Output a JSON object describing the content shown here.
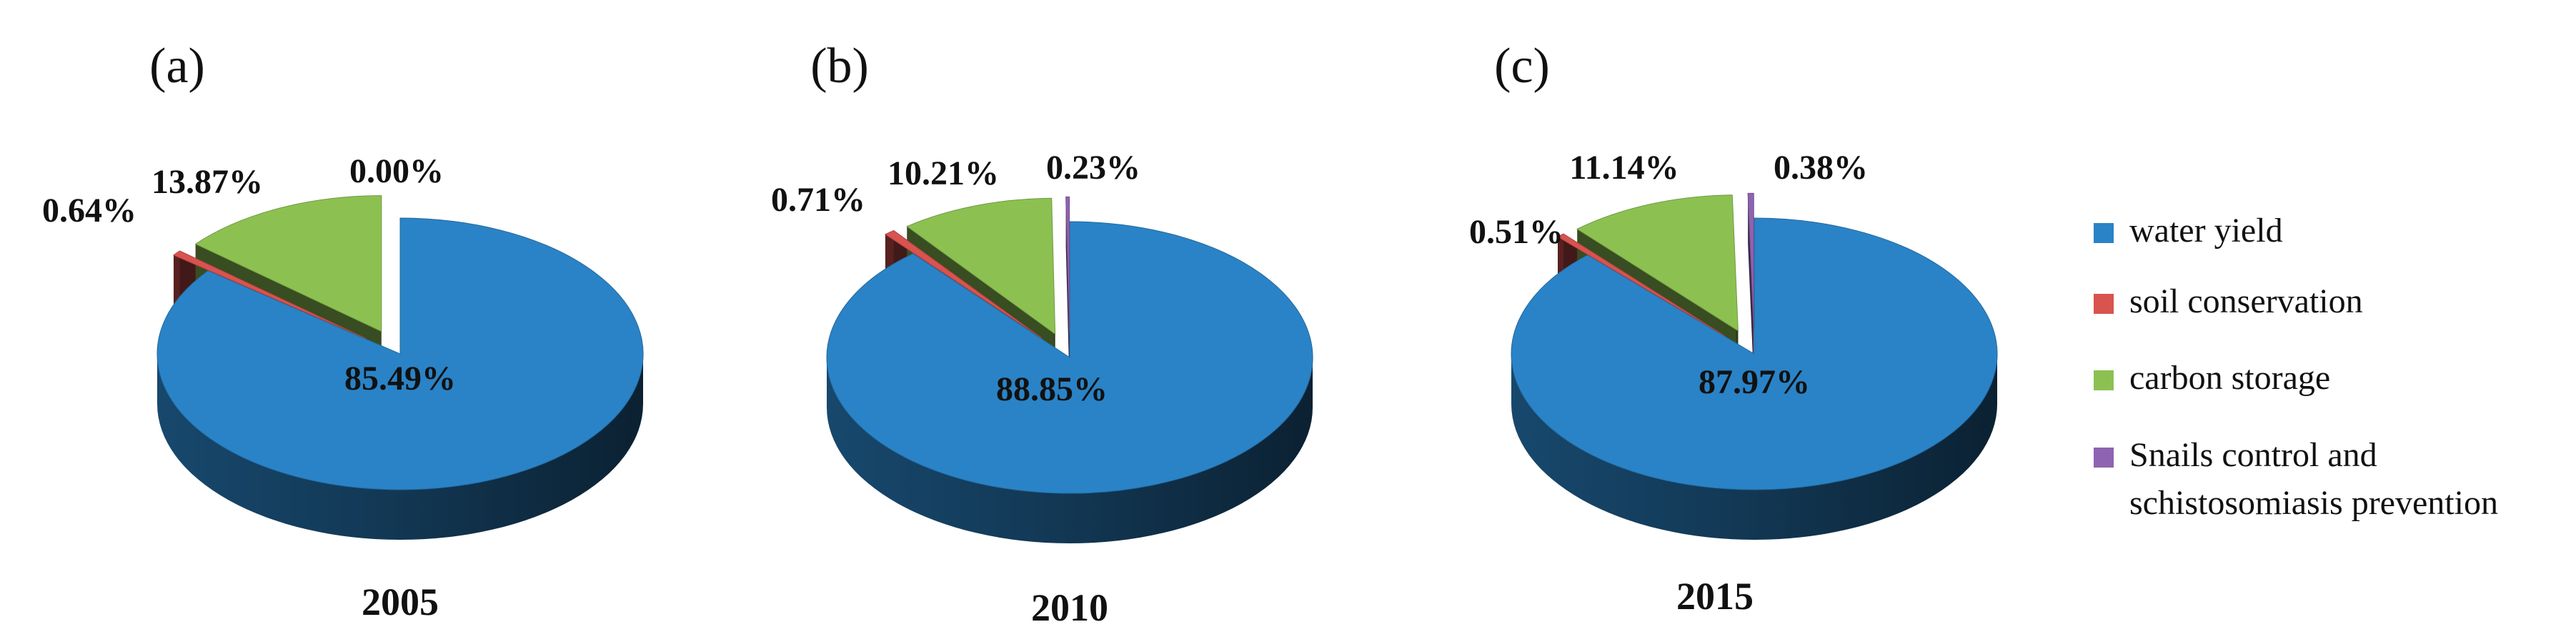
{
  "chart_data": [
    {
      "type": "pie",
      "panel": "(a)",
      "year": "2005",
      "slices": [
        {
          "category": "water yield",
          "value": 85.49,
          "label": "85.49%",
          "color": "#2a83c6"
        },
        {
          "category": "soil conservation",
          "value": 0.64,
          "label": "0.64%",
          "color": "#d9534f"
        },
        {
          "category": "carbon storage",
          "value": 13.87,
          "label": "13.87%",
          "color": "#8cc152"
        },
        {
          "category": "Snails control and schistosomiasis prevention",
          "value": 0.0,
          "label": "0.00%",
          "color": "#8e63b0"
        }
      ]
    },
    {
      "type": "pie",
      "panel": "(b)",
      "year": "2010",
      "slices": [
        {
          "category": "water yield",
          "value": 88.85,
          "label": "88.85%",
          "color": "#2a83c6"
        },
        {
          "category": "soil conservation",
          "value": 0.71,
          "label": "0.71%",
          "color": "#d9534f"
        },
        {
          "category": "carbon storage",
          "value": 10.21,
          "label": "10.21%",
          "color": "#8cc152"
        },
        {
          "category": "Snails control and schistosomiasis prevention",
          "value": 0.23,
          "label": "0.23%",
          "color": "#8e63b0"
        }
      ]
    },
    {
      "type": "pie",
      "panel": "(c)",
      "year": "2015",
      "slices": [
        {
          "category": "water yield",
          "value": 87.97,
          "label": "87.97%",
          "color": "#2a83c6"
        },
        {
          "category": "soil conservation",
          "value": 0.51,
          "label": "0.51%",
          "color": "#d9534f"
        },
        {
          "category": "carbon storage",
          "value": 11.14,
          "label": "11.14%",
          "color": "#8cc152"
        },
        {
          "category": "Snails control and schistosomiasis prevention",
          "value": 0.38,
          "label": "0.38%",
          "color": "#8e63b0"
        }
      ]
    }
  ],
  "legend": {
    "placement": "right",
    "items": [
      {
        "label": "water yield",
        "color": "#2a83c6"
      },
      {
        "label": "soil conservation",
        "color": "#d9534f"
      },
      {
        "label": "carbon storage",
        "color": "#8cc152"
      },
      {
        "label": "Snails control and schistosomiasis prevention",
        "lines": [
          "Snails control and",
          "schistosomiasis prevention"
        ],
        "color": "#8e63b0"
      }
    ]
  }
}
